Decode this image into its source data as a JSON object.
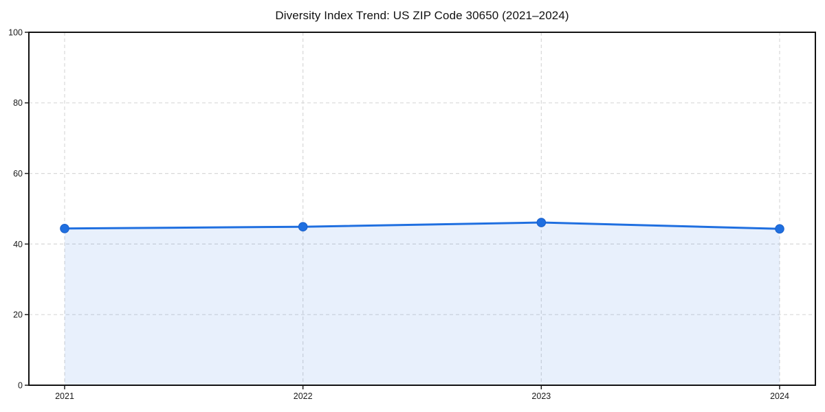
{
  "figure": {
    "background": "#ffffff"
  },
  "chart_data": {
    "type": "area",
    "title": "Diversity Index Trend: US ZIP Code 30650 (2021–2024)",
    "categories": [
      "2021",
      "2022",
      "2023",
      "2024"
    ],
    "values": [
      44.4,
      44.9,
      46.1,
      44.3
    ],
    "xlabel": "",
    "ylabel": "",
    "ylim": [
      0,
      100
    ],
    "yticks": [
      0,
      20,
      40,
      60,
      80,
      100
    ],
    "grid": "dashed",
    "legend_position": "none",
    "line_color": "#1f6fe0",
    "marker_color": "#1f6fe0",
    "marker_edge_color": "#1a5fc9",
    "fill_color": "rgba(31,111,224,0.10)",
    "grid_color": "#d8d8d8",
    "spine_color": "#111111",
    "tick_color": "#1a1a1a",
    "text_color": "#1a1a1a"
  }
}
